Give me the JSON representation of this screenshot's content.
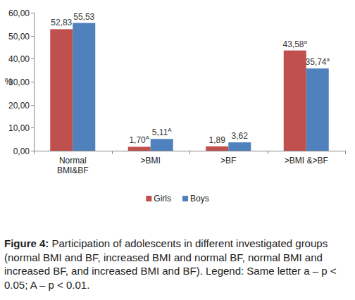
{
  "chart_data": {
    "type": "bar",
    "y_label": "%",
    "categories": [
      "Normal BMI&BF",
      ">BMI",
      ">BF",
      ">BMI &>BF"
    ],
    "series": [
      {
        "name": "Girls",
        "color": "#c0504d",
        "values": [
          52.83,
          1.7,
          1.89,
          43.58
        ],
        "value_labels": [
          "52,83",
          "1,70",
          "1,89",
          "43,58"
        ],
        "value_notes": [
          null,
          "A",
          null,
          "a"
        ]
      },
      {
        "name": "Boys",
        "color": "#4f81bd",
        "values": [
          55.53,
          5.11,
          3.62,
          35.74
        ],
        "value_labels": [
          "55,53",
          "5,11",
          "3,62",
          "35,74"
        ],
        "value_notes": [
          null,
          "A",
          null,
          "a"
        ]
      }
    ],
    "ylim": [
      0,
      60
    ],
    "yticks": [
      {
        "value": 0,
        "label": "0,00"
      },
      {
        "value": 10,
        "label": "10,00"
      },
      {
        "value": 20,
        "label": "20,00"
      },
      {
        "value": 30,
        "label": "30,00"
      },
      {
        "value": 40,
        "label": "40,00"
      },
      {
        "value": 50,
        "label": "50,00"
      },
      {
        "value": 60,
        "label": "60,00"
      }
    ],
    "grid": false,
    "legend": "bottom",
    "data_labels": true,
    "caption_label": "Figure 4:",
    "caption": "Participation of adolescents in different investigated groups (normal BMI and BF, increased BMI and normal BF, normal BMI and increased BF, and increased BMI and BF). Legend: Same letter a – p < 0.05; A – p < 0.01."
  }
}
